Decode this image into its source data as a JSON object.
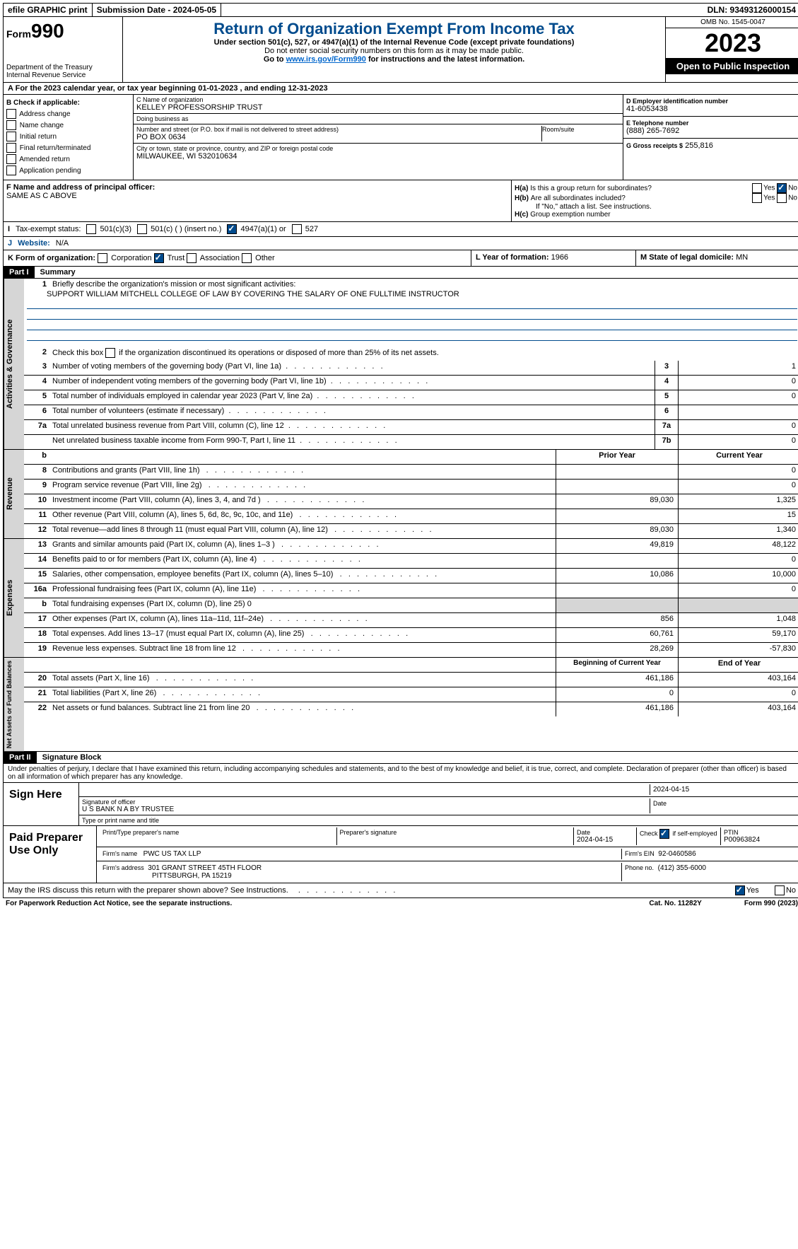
{
  "topbar": {
    "efile": "efile GRAPHIC print",
    "submission": "Submission Date - 2024-05-05",
    "dln": "DLN: 93493126000154"
  },
  "header": {
    "form_prefix": "Form",
    "form_num": "990",
    "dept": "Department of the Treasury",
    "irs": "Internal Revenue Service",
    "title": "Return of Organization Exempt From Income Tax",
    "sub": "Under section 501(c), 527, or 4947(a)(1) of the Internal Revenue Code (except private foundations)",
    "note1": "Do not enter social security numbers on this form as it may be made public.",
    "note2_pre": "Go to ",
    "note2_link": "www.irs.gov/Form990",
    "note2_post": " for instructions and the latest information.",
    "omb": "OMB No. 1545-0047",
    "year": "2023",
    "open": "Open to Public Inspection"
  },
  "section_a": "For the 2023 calendar year, or tax year beginning 01-01-2023   , and ending 12-31-2023",
  "box_b": {
    "title": "B Check if applicable:",
    "opts": [
      "Address change",
      "Name change",
      "Initial return",
      "Final return/terminated",
      "Amended return",
      "Application pending"
    ]
  },
  "box_c": {
    "name_label": "C Name of organization",
    "name": "KELLEY PROFESSORSHIP TRUST",
    "dba_label": "Doing business as",
    "dba": "",
    "addr_label": "Number and street (or P.O. box if mail is not delivered to street address)",
    "addr": "PO BOX 0634",
    "room_label": "Room/suite",
    "city_label": "City or town, state or province, country, and ZIP or foreign postal code",
    "city": "MILWAUKEE, WI  532010634"
  },
  "box_d": {
    "label": "D Employer identification number",
    "val": "41-6053438"
  },
  "box_e": {
    "label": "E Telephone number",
    "val": "(888) 265-7692"
  },
  "box_g": {
    "label": "G Gross receipts $",
    "val": "255,816"
  },
  "box_f": {
    "label": "F  Name and address of principal officer:",
    "val": "SAME AS C ABOVE"
  },
  "box_h": {
    "ha": "Is this a group return for subordinates?",
    "hb": "Are all subordinates included?",
    "hb_note": "If \"No,\" attach a list. See instructions.",
    "hc": "Group exemption number"
  },
  "tax_status": {
    "label": "Tax-exempt status:",
    "opts": [
      "501(c)(3)",
      "501(c) (  ) (insert no.)",
      "4947(a)(1) or",
      "527"
    ]
  },
  "website": {
    "label_letter": "J",
    "label": "Website:",
    "val": "N/A"
  },
  "box_k": {
    "label": "K Form of organization:",
    "opts": [
      "Corporation",
      "Trust",
      "Association",
      "Other"
    ]
  },
  "box_l": {
    "label": "L Year of formation:",
    "val": "1966"
  },
  "box_m": {
    "label": "M State of legal domicile:",
    "val": "MN"
  },
  "part1": {
    "header": "Part I",
    "title": "Summary",
    "q1_label": "Briefly describe the organization's mission or most significant activities:",
    "q1_val": "SUPPORT WILLIAM MITCHELL COLLEGE OF LAW BY COVERING THE SALARY OF ONE FULLTIME INSTRUCTOR",
    "q2": "Check this box      if the organization discontinued its operations or disposed of more than 25% of its net assets.",
    "rows_gov": [
      {
        "n": "3",
        "d": "Number of voting members of the governing body (Part VI, line 1a)",
        "box": "3",
        "v": "1"
      },
      {
        "n": "4",
        "d": "Number of independent voting members of the governing body (Part VI, line 1b)",
        "box": "4",
        "v": "0"
      },
      {
        "n": "5",
        "d": "Total number of individuals employed in calendar year 2023 (Part V, line 2a)",
        "box": "5",
        "v": "0"
      },
      {
        "n": "6",
        "d": "Total number of volunteers (estimate if necessary)",
        "box": "6",
        "v": ""
      },
      {
        "n": "7a",
        "d": "Total unrelated business revenue from Part VIII, column (C), line 12",
        "box": "7a",
        "v": "0"
      },
      {
        "n": "",
        "d": "Net unrelated business taxable income from Form 990-T, Part I, line 11",
        "box": "7b",
        "v": "0"
      }
    ],
    "hdr_b": "b",
    "col_prior": "Prior Year",
    "col_curr": "Current Year",
    "rows_rev": [
      {
        "n": "8",
        "d": "Contributions and grants (Part VIII, line 1h)",
        "p": "",
        "c": "0"
      },
      {
        "n": "9",
        "d": "Program service revenue (Part VIII, line 2g)",
        "p": "",
        "c": "0"
      },
      {
        "n": "10",
        "d": "Investment income (Part VIII, column (A), lines 3, 4, and 7d )",
        "p": "89,030",
        "c": "1,325"
      },
      {
        "n": "11",
        "d": "Other revenue (Part VIII, column (A), lines 5, 6d, 8c, 9c, 10c, and 11e)",
        "p": "",
        "c": "15"
      },
      {
        "n": "12",
        "d": "Total revenue—add lines 8 through 11 (must equal Part VIII, column (A), line 12)",
        "p": "89,030",
        "c": "1,340"
      }
    ],
    "rows_exp": [
      {
        "n": "13",
        "d": "Grants and similar amounts paid (Part IX, column (A), lines 1–3 )",
        "p": "49,819",
        "c": "48,122"
      },
      {
        "n": "14",
        "d": "Benefits paid to or for members (Part IX, column (A), line 4)",
        "p": "",
        "c": "0"
      },
      {
        "n": "15",
        "d": "Salaries, other compensation, employee benefits (Part IX, column (A), lines 5–10)",
        "p": "10,086",
        "c": "10,000"
      },
      {
        "n": "16a",
        "d": "Professional fundraising fees (Part IX, column (A), line 11e)",
        "p": "",
        "c": "0"
      },
      {
        "n": "b",
        "d": "Total fundraising expenses (Part IX, column (D), line 25) 0",
        "p": "SHADE",
        "c": "SHADE"
      },
      {
        "n": "17",
        "d": "Other expenses (Part IX, column (A), lines 11a–11d, 11f–24e)",
        "p": "856",
        "c": "1,048"
      },
      {
        "n": "18",
        "d": "Total expenses. Add lines 13–17 (must equal Part IX, column (A), line 25)",
        "p": "60,761",
        "c": "59,170"
      },
      {
        "n": "19",
        "d": "Revenue less expenses. Subtract line 18 from line 12",
        "p": "28,269",
        "c": "-57,830"
      }
    ],
    "col_begin": "Beginning of Current Year",
    "col_end": "End of Year",
    "rows_net": [
      {
        "n": "20",
        "d": "Total assets (Part X, line 16)",
        "p": "461,186",
        "c": "403,164"
      },
      {
        "n": "21",
        "d": "Total liabilities (Part X, line 26)",
        "p": "0",
        "c": "0"
      },
      {
        "n": "22",
        "d": "Net assets or fund balances. Subtract line 21 from line 20",
        "p": "461,186",
        "c": "403,164"
      }
    ]
  },
  "part2": {
    "header": "Part II",
    "title": "Signature Block",
    "decl": "Under penalties of perjury, I declare that I have examined this return, including accompanying schedules and statements, and to the best of my knowledge and belief, it is true, correct, and complete. Declaration of preparer (other than officer) is based on all information of which preparer has any knowledge."
  },
  "sign": {
    "left": "Sign Here",
    "sig_label": "Signature of officer",
    "sig_val": "U S BANK N A BY TRUSTEE",
    "type_label": "Type or print name and title",
    "date_label": "Date",
    "date_top": "2024-04-15"
  },
  "prep": {
    "left": "Paid Preparer Use Only",
    "name_label": "Print/Type preparer's name",
    "sig_label": "Preparer's signature",
    "date_label": "Date",
    "date": "2024-04-15",
    "check_label": "Check      if self-employed",
    "ptin_label": "PTIN",
    "ptin": "P00963824",
    "firm_name_label": "Firm's name",
    "firm_name": "PWC US TAX LLP",
    "firm_ein_label": "Firm's EIN",
    "firm_ein": "92-0460586",
    "firm_addr_label": "Firm's address",
    "firm_addr1": "301 GRANT STREET 45TH FLOOR",
    "firm_addr2": "PITTSBURGH, PA  15219",
    "phone_label": "Phone no.",
    "phone": "(412) 355-6000"
  },
  "discuss": "May the IRS discuss this return with the preparer shown above? See Instructions.",
  "footer": {
    "left": "For Paperwork Reduction Act Notice, see the separate instructions.",
    "mid": "Cat. No. 11282Y",
    "right": "Form 990 (2023)"
  },
  "labels": {
    "sides": {
      "gov": "Activities & Governance",
      "rev": "Revenue",
      "exp": "Expenses",
      "net": "Net Assets or Fund Balances"
    },
    "yes": "Yes",
    "no": "No",
    "ha": "H(a)",
    "hb": "H(b)",
    "hc": "H(c)",
    "i": "I"
  }
}
